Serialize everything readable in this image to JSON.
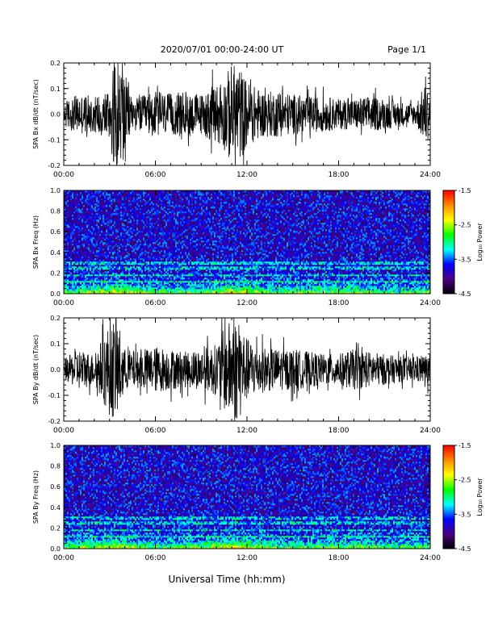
{
  "header": {
    "title": "2020/07/01  00:00-24:00 UT",
    "page_label": "Page 1/1"
  },
  "x_axis": {
    "xlabel": "Universal Time (hh:mm)",
    "tick_labels": [
      "00:00",
      "06:00",
      "12:00",
      "18:00",
      "24:00"
    ],
    "range_hours": [
      0,
      24
    ]
  },
  "colorbar": {
    "label": "Log₁₀ Power",
    "range": [
      -4.5,
      -1.5
    ],
    "tick_labels": [
      "-1.5",
      "-2.5",
      "-3.5",
      "-4.5"
    ],
    "tick_values": [
      -1.5,
      -2.5,
      -3.5,
      -4.5
    ],
    "colormap": [
      "#000000",
      "#4b0082",
      "#0000ff",
      "#00ffff",
      "#00ff00",
      "#ffff00",
      "#ff8c00",
      "#ff0000"
    ]
  },
  "chart_data": [
    {
      "type": "line",
      "ylabel": "SPA Bx dB/dt (nT/sec)",
      "ylim": [
        -0.2,
        0.2
      ],
      "y_tick_labels": [
        "0.2",
        "0.1",
        "0.0",
        "-0.1",
        "-0.2"
      ],
      "y_tick_values": [
        0.2,
        0.1,
        0.0,
        -0.1,
        -0.2
      ],
      "series_color": "#000000",
      "envelope": {
        "x_hours": [
          0,
          1,
          2,
          3,
          3.3,
          3.8,
          4.5,
          5,
          6,
          7,
          8,
          9,
          10,
          10.5,
          11,
          11.5,
          12,
          13,
          14,
          15,
          16,
          17,
          18,
          19,
          20,
          21,
          22,
          23,
          23.7,
          24
        ],
        "amplitude": [
          0.05,
          0.08,
          0.07,
          0.11,
          0.2,
          0.2,
          0.06,
          0.07,
          0.09,
          0.08,
          0.09,
          0.08,
          0.12,
          0.14,
          0.2,
          0.19,
          0.13,
          0.09,
          0.09,
          0.08,
          0.07,
          0.07,
          0.06,
          0.06,
          0.07,
          0.06,
          0.05,
          0.04,
          0.12,
          0.08
        ]
      }
    },
    {
      "type": "heatmap",
      "ylabel": "SPA Bx Freq (Hz)",
      "ylim": [
        0,
        1.0
      ],
      "y_tick_labels": [
        "1.0",
        "0.8",
        "0.6",
        "0.4",
        "0.2",
        "0.0"
      ],
      "y_tick_values": [
        1.0,
        0.8,
        0.6,
        0.4,
        0.2,
        0.0
      ],
      "zlim": [
        -4.5,
        -1.5
      ],
      "background_log_power": -3.8,
      "low_freq_enhancement": {
        "x_hours": [
          0,
          3,
          3.5,
          6,
          9,
          11,
          12,
          14,
          18,
          21,
          24
        ],
        "log_power_at_0hz": [
          -2.6,
          -2.2,
          -2.0,
          -2.6,
          -2.5,
          -2.0,
          -2.1,
          -2.6,
          -2.4,
          -2.7,
          -2.6
        ]
      },
      "spectral_lines_hz": [
        0.3,
        0.25,
        0.18,
        0.12
      ]
    },
    {
      "type": "line",
      "ylabel": "SPA By dB/dt (nT/sec)",
      "ylim": [
        -0.2,
        0.2
      ],
      "y_tick_labels": [
        "0.2",
        "0.1",
        "0.0",
        "-0.1",
        "-0.2"
      ],
      "y_tick_values": [
        0.2,
        0.1,
        0.0,
        -0.1,
        -0.2
      ],
      "series_color": "#000000",
      "envelope": {
        "x_hours": [
          0,
          1,
          2,
          3,
          3.5,
          4,
          5,
          6,
          7,
          8,
          9,
          10,
          10.5,
          11,
          11.5,
          12,
          13,
          14,
          15,
          16,
          17,
          18,
          19,
          20,
          21,
          22,
          23,
          24
        ],
        "amplitude": [
          0.04,
          0.08,
          0.06,
          0.18,
          0.2,
          0.08,
          0.07,
          0.09,
          0.08,
          0.07,
          0.08,
          0.1,
          0.16,
          0.2,
          0.2,
          0.12,
          0.09,
          0.08,
          0.08,
          0.07,
          0.06,
          0.06,
          0.08,
          0.07,
          0.06,
          0.05,
          0.05,
          0.06
        ]
      }
    },
    {
      "type": "heatmap",
      "ylabel": "SPA By Freq (Hz)",
      "ylim": [
        0,
        1.0
      ],
      "y_tick_labels": [
        "1.0",
        "0.8",
        "0.6",
        "0.4",
        "0.2",
        "0.0"
      ],
      "y_tick_values": [
        1.0,
        0.8,
        0.6,
        0.4,
        0.2,
        0.0
      ],
      "zlim": [
        -4.5,
        -1.5
      ],
      "background_log_power": -3.8,
      "low_freq_enhancement": {
        "x_hours": [
          0,
          3,
          3.5,
          6,
          9,
          11,
          12,
          14,
          18,
          19,
          21,
          24
        ],
        "log_power_at_0hz": [
          -2.6,
          -2.2,
          -2.0,
          -2.6,
          -2.4,
          -1.9,
          -2.1,
          -2.6,
          -2.5,
          -2.3,
          -2.6,
          -2.6
        ]
      },
      "spectral_lines_hz": [
        0.3,
        0.25,
        0.18,
        0.12
      ]
    }
  ]
}
